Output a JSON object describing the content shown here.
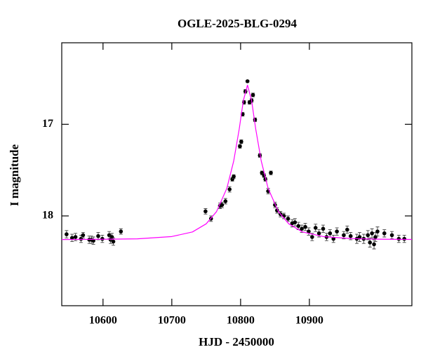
{
  "chart_data": {
    "type": "scatter",
    "title": "OGLE-2025-BLG-0294",
    "x_label": "HJD - 2450000",
    "y_label": "I magnitude",
    "xlim": [
      10540,
      11049
    ],
    "ylim": [
      18.98,
      16.11
    ],
    "xticks": [
      10600,
      10700,
      10800,
      10900
    ],
    "yticks": [
      17,
      18
    ],
    "series": [
      {
        "kind": "points",
        "color": "#000000",
        "x": [
          10547,
          10555,
          10560,
          10568,
          10571,
          10580,
          10583,
          10586,
          10593,
          10599,
          10609,
          10611,
          10613,
          10615,
          10626,
          10749,
          10757,
          10770,
          10773,
          10778,
          10784,
          10788,
          10790,
          10799,
          10801,
          10803,
          10805,
          10807,
          10810,
          10813,
          10816,
          10818,
          10821,
          10828,
          10831,
          10834,
          10836,
          10840,
          10844,
          10850,
          10853,
          10858,
          10863,
          10869,
          10875,
          10879,
          10884,
          10889,
          10894,
          10899,
          10904,
          10909,
          10914,
          10920,
          10925,
          10930,
          10935,
          10940,
          10950,
          10955,
          10960,
          10969,
          10973,
          10979,
          10985,
          10988,
          10991,
          10994,
          10996,
          10999,
          11009,
          11020,
          11030,
          11038
        ],
        "values": [
          18.2,
          18.24,
          18.23,
          18.25,
          18.21,
          18.26,
          18.26,
          18.27,
          18.22,
          18.25,
          18.21,
          18.26,
          18.23,
          18.28,
          18.17,
          17.95,
          18.03,
          17.89,
          17.88,
          17.84,
          17.71,
          17.6,
          17.57,
          17.24,
          17.19,
          16.89,
          16.76,
          16.64,
          16.53,
          16.76,
          16.74,
          16.68,
          16.95,
          17.34,
          17.53,
          17.56,
          17.6,
          17.73,
          17.53,
          17.88,
          17.94,
          17.98,
          18.0,
          18.03,
          18.08,
          18.07,
          18.11,
          18.14,
          18.12,
          18.17,
          18.23,
          18.13,
          18.19,
          18.14,
          18.23,
          18.19,
          18.25,
          18.17,
          18.21,
          18.15,
          18.22,
          18.25,
          18.23,
          18.25,
          18.21,
          18.29,
          18.19,
          18.31,
          18.23,
          18.17,
          18.19,
          18.21,
          18.25,
          18.25
        ],
        "errors": [
          0.04,
          0.04,
          0.04,
          0.04,
          0.03,
          0.04,
          0.04,
          0.04,
          0.04,
          0.04,
          0.04,
          0.04,
          0.04,
          0.04,
          0.03,
          0.03,
          0.03,
          0.03,
          0.03,
          0.03,
          0.03,
          0.02,
          0.02,
          0.02,
          0.02,
          0.02,
          0.02,
          0.02,
          0.01,
          0.02,
          0.02,
          0.02,
          0.02,
          0.02,
          0.02,
          0.02,
          0.02,
          0.03,
          0.02,
          0.03,
          0.03,
          0.03,
          0.03,
          0.03,
          0.04,
          0.04,
          0.04,
          0.04,
          0.04,
          0.04,
          0.04,
          0.04,
          0.04,
          0.04,
          0.04,
          0.04,
          0.04,
          0.04,
          0.04,
          0.04,
          0.04,
          0.05,
          0.05,
          0.05,
          0.05,
          0.05,
          0.05,
          0.05,
          0.05,
          0.05,
          0.04,
          0.04,
          0.04,
          0.04
        ]
      },
      {
        "kind": "model",
        "color": "#ff00ff",
        "x": [
          10540,
          10600,
          10650,
          10700,
          10730,
          10750,
          10765,
          10780,
          10790,
          10798,
          10804,
          10810,
          10816,
          10822,
          10830,
          10840,
          10855,
          10870,
          10890,
          10920,
          10960,
          11000,
          11049
        ],
        "values": [
          18.258,
          18.255,
          18.25,
          18.225,
          18.175,
          18.086,
          17.953,
          17.699,
          17.4,
          17.052,
          16.741,
          16.572,
          16.741,
          17.052,
          17.4,
          17.699,
          17.953,
          18.086,
          18.175,
          18.225,
          18.247,
          18.254,
          18.257
        ]
      }
    ]
  }
}
